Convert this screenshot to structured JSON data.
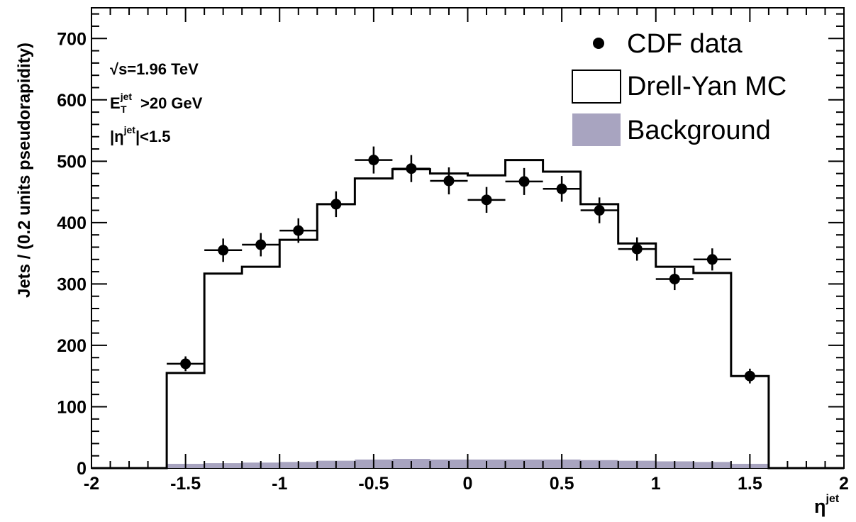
{
  "chart_data": {
    "type": "histogram",
    "xlabel": "η",
    "xlabel_sup": "jet",
    "ylabel": "Jets / (0.2 units pseudorapidity)",
    "xlim": [
      -2,
      2
    ],
    "ylim": [
      0,
      750
    ],
    "x_ticks": [
      -2,
      -1.5,
      -1,
      -0.5,
      0,
      0.5,
      1,
      1.5,
      2
    ],
    "x_tick_labels": [
      "-2",
      "-1.5",
      "-1",
      "-0.5",
      "0",
      "0.5",
      "1",
      "1.5",
      "2"
    ],
    "y_ticks": [
      0,
      100,
      200,
      300,
      400,
      500,
      600,
      700
    ],
    "y_tick_labels": [
      "0",
      "100",
      "200",
      "300",
      "400",
      "500",
      "600",
      "700"
    ],
    "bin_edges": [
      -1.6,
      -1.4,
      -1.2,
      -1.0,
      -0.8,
      -0.6,
      -0.4,
      -0.2,
      0.0,
      0.2,
      0.4,
      0.6,
      0.8,
      1.0,
      1.2,
      1.4,
      1.6
    ],
    "series": [
      {
        "name": "CDF data",
        "style": "points-with-errors",
        "x": [
          -1.5,
          -1.3,
          -1.1,
          -0.9,
          -0.7,
          -0.5,
          -0.3,
          -0.1,
          0.1,
          0.3,
          0.5,
          0.7,
          0.9,
          1.1,
          1.3,
          1.5
        ],
        "values": [
          170,
          355,
          364,
          387,
          430,
          502,
          488,
          468,
          437,
          467,
          455,
          420,
          357,
          308,
          340,
          150
        ],
        "errors": [
          12,
          19,
          19,
          20,
          21,
          22,
          22,
          22,
          21,
          22,
          21,
          21,
          19,
          18,
          18,
          12
        ]
      },
      {
        "name": "Drell-Yan MC",
        "style": "step",
        "values": [
          155,
          317,
          328,
          372,
          430,
          472,
          487,
          480,
          477,
          502,
          483,
          430,
          366,
          328,
          318,
          150
        ]
      },
      {
        "name": "Background",
        "style": "filled",
        "color": "#a8a4c0",
        "values": [
          7,
          8,
          9,
          10,
          12,
          14,
          15,
          14,
          14,
          14,
          14,
          13,
          12,
          11,
          10,
          7
        ]
      }
    ],
    "annotations": {
      "sqrt_s": "√s=1.96 TeV",
      "et_prefix": "E",
      "et_sub": "T",
      "et_sup": "jet",
      "et_suffix": ">20 GeV",
      "eta_prefix": "|η",
      "eta_sup": "jet",
      "eta_suffix": "|<1.5"
    },
    "legend": {
      "placement": "top-right",
      "entries": [
        "CDF data",
        "Drell-Yan MC",
        "Background"
      ]
    },
    "grid": false
  }
}
